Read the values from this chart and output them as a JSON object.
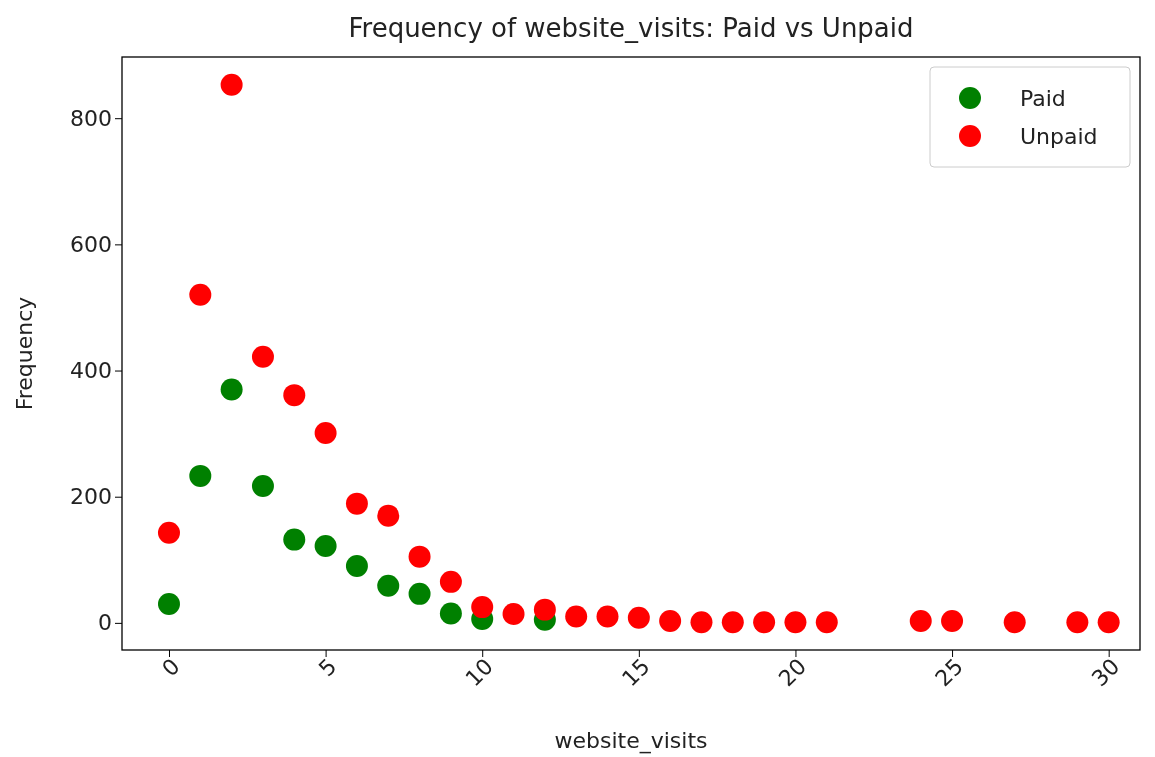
{
  "chart_data": {
    "type": "scatter",
    "title": "Frequency of website_visits: Paid vs Unpaid",
    "xlabel": "website_visits",
    "ylabel": "Frequency",
    "series": [
      {
        "name": "Paid",
        "color": "#008000",
        "x": [
          0,
          1,
          2,
          3,
          4,
          5,
          6,
          7,
          8,
          9,
          10,
          12
        ],
        "values": [
          30,
          233,
          370,
          217,
          132,
          122,
          90,
          59,
          46,
          15,
          6,
          5
        ]
      },
      {
        "name": "Unpaid",
        "color": "#ff0000",
        "x": [
          0,
          1,
          2,
          3,
          4,
          5,
          6,
          7,
          8,
          9,
          10,
          11,
          12,
          13,
          14,
          15,
          16,
          17,
          18,
          19,
          20,
          21,
          24,
          25,
          27,
          29,
          30
        ],
        "values": [
          143,
          520,
          853,
          422,
          361,
          301,
          189,
          170,
          105,
          65,
          25,
          14,
          21,
          10,
          10,
          8,
          3,
          1,
          1,
          1,
          1,
          1,
          3,
          3,
          1,
          1,
          1
        ]
      }
    ],
    "xlim": [
      -1.5,
      31
    ],
    "ylim": [
      -43,
      897
    ],
    "xticks": [
      0,
      5,
      10,
      15,
      20,
      25,
      30
    ],
    "yticks": [
      0,
      200,
      400,
      600,
      800
    ],
    "marker": "circle",
    "legend": "top right",
    "grid": false
  }
}
